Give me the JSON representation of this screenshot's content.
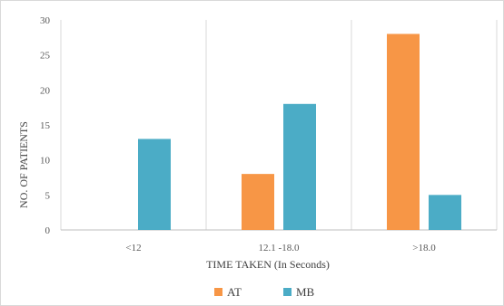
{
  "chart_data": {
    "type": "bar",
    "categories": [
      "<12",
      "12.1 -18.0",
      ">18.0"
    ],
    "series": [
      {
        "name": "AT",
        "values": [
          0,
          8,
          28
        ],
        "color": "#f79646"
      },
      {
        "name": "MB",
        "values": [
          13,
          18,
          5
        ],
        "color": "#4bacc6"
      }
    ],
    "xlabel": "TIME TAKEN (In Seconds)",
    "ylabel": "NO. OF PATIENTS",
    "ylim": [
      0,
      30
    ],
    "yticks": [
      0,
      5,
      10,
      15,
      20,
      25,
      30
    ],
    "grid": "vertical category separators",
    "legend": "bottom"
  }
}
